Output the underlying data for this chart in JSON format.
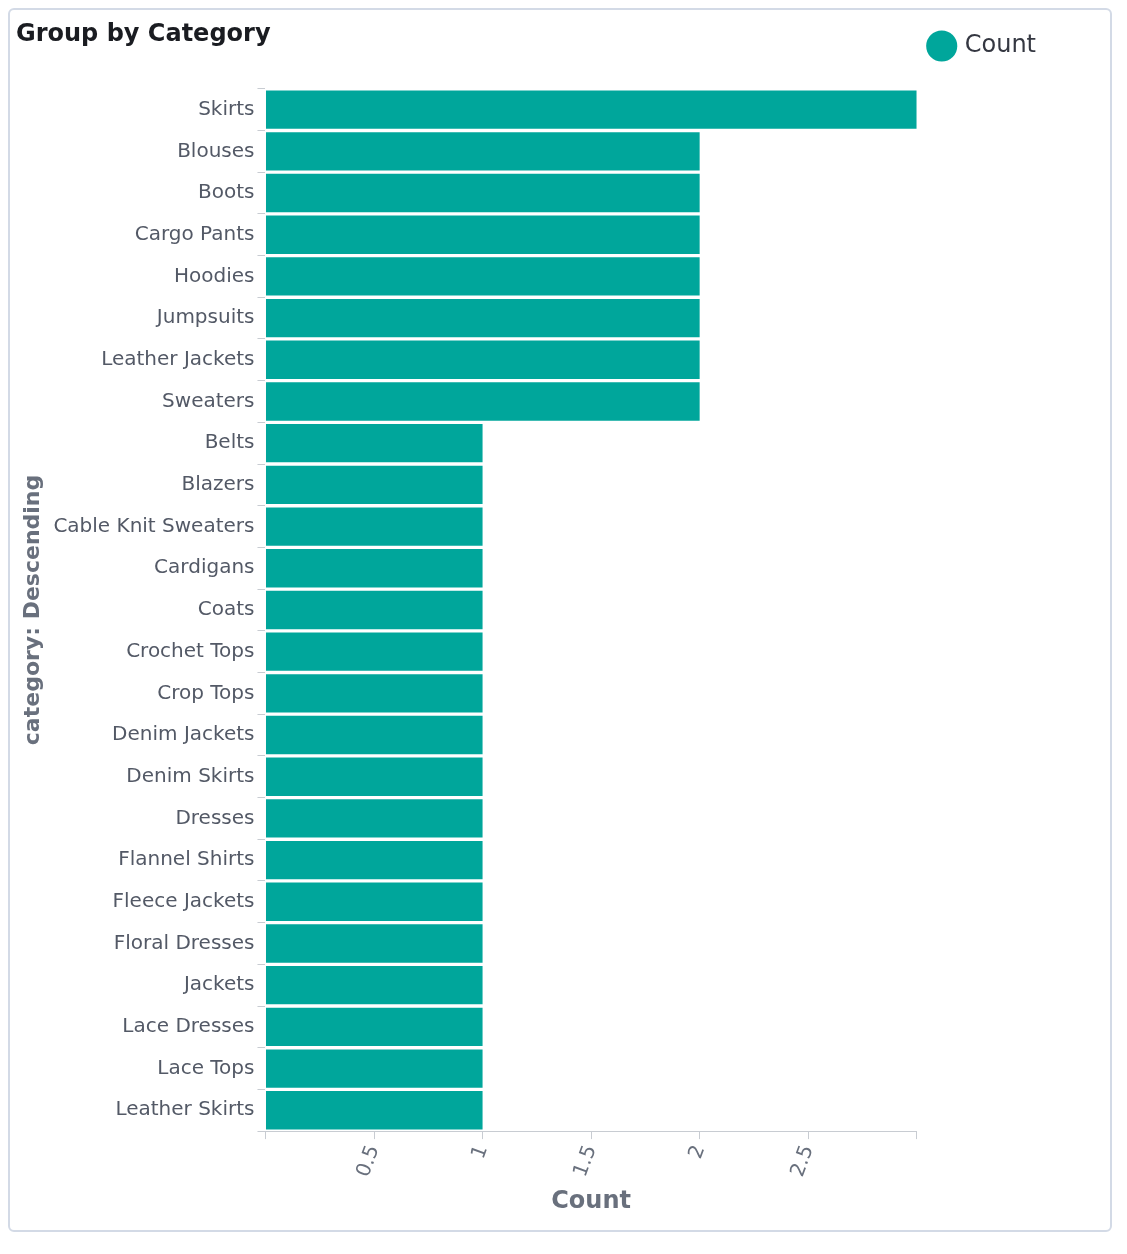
{
  "chart_data": {
    "type": "bar",
    "orientation": "horizontal",
    "title": "Group by Category",
    "xlabel": "Count",
    "ylabel": "category: Descending",
    "categories": [
      "Skirts",
      "Blouses",
      "Boots",
      "Cargo Pants",
      "Hoodies",
      "Jumpsuits",
      "Leather Jackets",
      "Sweaters",
      "Belts",
      "Blazers",
      "Cable Knit Sweaters",
      "Cardigans",
      "Coats",
      "Crochet Tops",
      "Crop Tops",
      "Denim Jackets",
      "Denim Skirts",
      "Dresses",
      "Flannel Shirts",
      "Fleece Jackets",
      "Floral Dresses",
      "Jackets",
      "Lace Dresses",
      "Lace Tops",
      "Leather Skirts"
    ],
    "series": [
      {
        "name": "Count",
        "color": "#00a69b",
        "values": [
          3,
          2,
          2,
          2,
          2,
          2,
          2,
          2,
          1,
          1,
          1,
          1,
          1,
          1,
          1,
          1,
          1,
          1,
          1,
          1,
          1,
          1,
          1,
          1,
          1
        ]
      }
    ],
    "xlim": [
      0,
      3
    ],
    "xticks": [
      {
        "value": 0,
        "label": null
      },
      0.5,
      1,
      1.5,
      2,
      2.5,
      {
        "value": 3,
        "label": null
      }
    ],
    "grid": false,
    "legend": "top right",
    "marker": "circle"
  }
}
